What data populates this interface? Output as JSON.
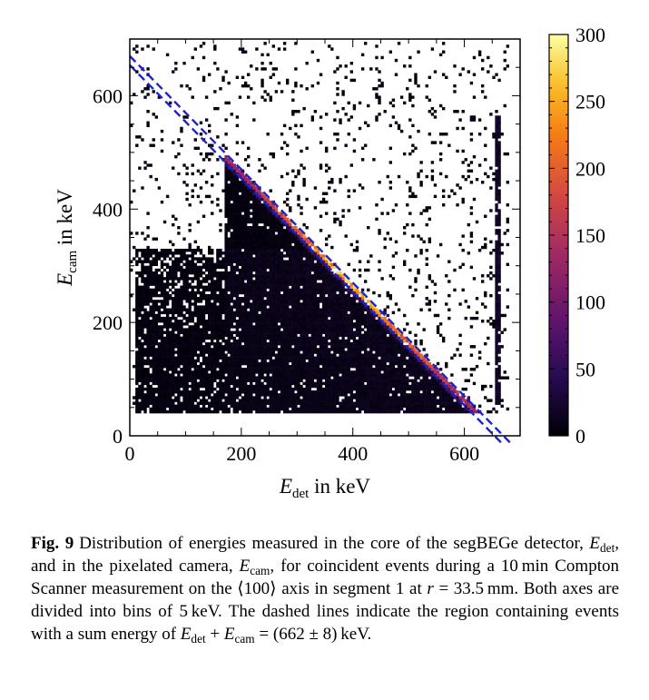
{
  "chart_data": {
    "type": "heatmap",
    "xlabel_symbol": "E",
    "xlabel_subscript": "det",
    "xlabel_suffix": " in keV",
    "ylabel_symbol": "E",
    "ylabel_subscript": "cam",
    "ylabel_suffix": " in keV",
    "x_ticks": [
      "0",
      "200",
      "400",
      "600"
    ],
    "y_ticks": [
      "0",
      "200",
      "400",
      "600"
    ],
    "xlim": [
      0,
      700
    ],
    "ylim": [
      0,
      700
    ],
    "bin_width_keV": 5,
    "colorbar_ticks": [
      "0",
      "50",
      "100",
      "150",
      "200",
      "250",
      "300"
    ],
    "colorbar_range": [
      0,
      300
    ],
    "colormap": "inferno",
    "sum_energy_keV": 662,
    "sum_window_keV": 8,
    "dashed_line_color": "#1d24c8",
    "dashed_lines": [
      {
        "x": [
          0,
          700
        ],
        "y": [
          670,
          -30
        ]
      },
      {
        "x": [
          0,
          700
        ],
        "y": [
          654,
          -46
        ]
      }
    ],
    "features": [
      {
        "description": "bright diagonal band",
        "x_range": [
          170,
          640
        ],
        "sum_keV": 662,
        "peak_count": 300
      },
      {
        "description": "dense low-energy region",
        "x_range": [
          10,
          560
        ],
        "y_range": [
          40,
          330
        ]
      },
      {
        "description": "vertical stripe",
        "x": 660,
        "y_range": [
          50,
          560
        ]
      }
    ]
  },
  "caption": {
    "label": "Fig. 9",
    "segments": [
      {
        "t": "Distribution of energies measured in the core of the segBEGe detector, "
      },
      {
        "t": "E",
        "i": true
      },
      {
        "t": "det",
        "sub": true
      },
      {
        "t": ", and in the pixelated camera, "
      },
      {
        "t": "E",
        "i": true
      },
      {
        "t": "cam",
        "sub": true
      },
      {
        "t": ", for coincident events during a 10 min Compton Scanner measurement on the ⟨100⟩ axis in segment 1 at "
      },
      {
        "t": "r",
        "i": true
      },
      {
        "t": " = 33.5 mm. Both axes are divided into bins of 5 keV. The dashed lines indicate the region containing events with a sum energy of "
      },
      {
        "t": "E",
        "i": true
      },
      {
        "t": "det",
        "sub": true
      },
      {
        "t": " + "
      },
      {
        "t": "E",
        "i": true
      },
      {
        "t": "cam",
        "sub": true
      },
      {
        "t": " = (662 ± 8) keV."
      }
    ]
  }
}
